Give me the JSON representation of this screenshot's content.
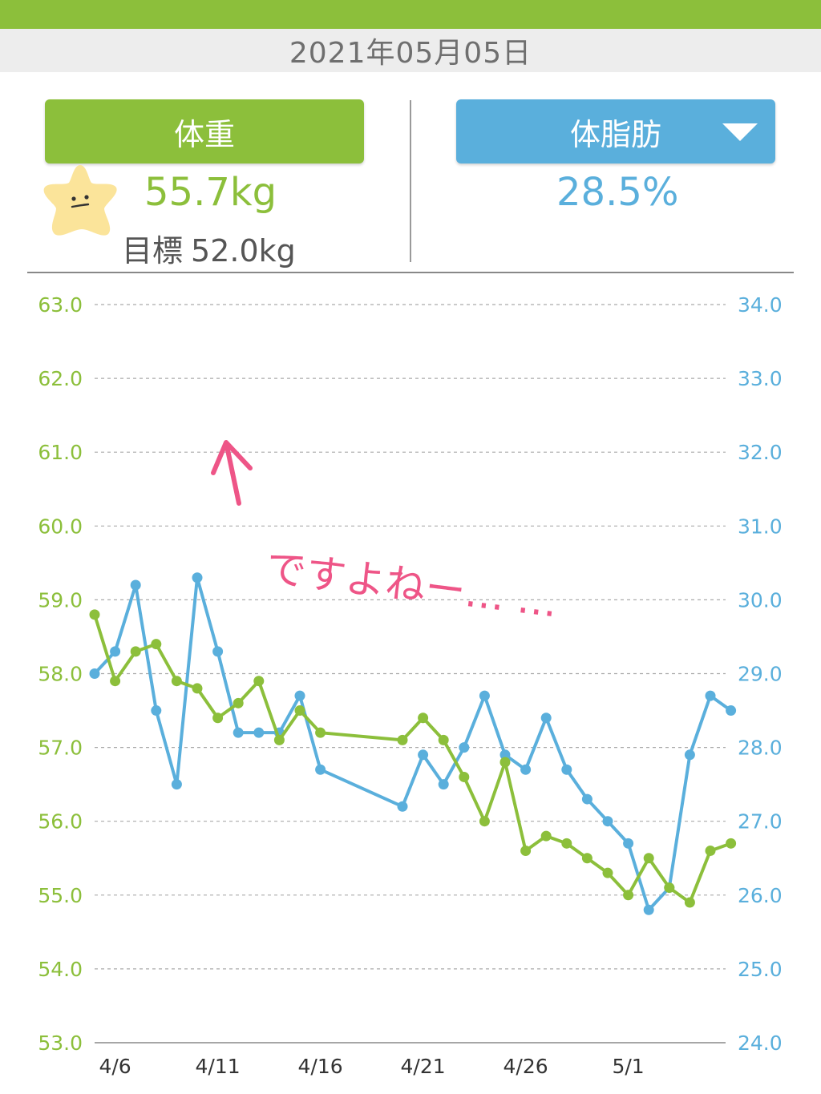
{
  "header": {
    "date": "2021年05月05日"
  },
  "tabs": {
    "weight_label": "体重",
    "fat_label": "体脂肪"
  },
  "summary": {
    "weight_value": "55.7kg",
    "target_label": "目標",
    "target_value": "52.0kg",
    "fat_value": "28.5%"
  },
  "annotation": {
    "text": "ですよねー… …",
    "icon": "arrow-up-icon"
  },
  "colors": {
    "weight": "#8cbf3b",
    "fat": "#5aafdc",
    "accent_top_bar": "#8cbf3b",
    "annotation": "#ee5587"
  },
  "chart_data": {
    "type": "line",
    "x_tick_labels": [
      "4/6",
      "4/11",
      "4/16",
      "4/21",
      "4/26",
      "5/1"
    ],
    "y_left_ticks": [
      "53.0",
      "54.0",
      "55.0",
      "56.0",
      "57.0",
      "58.0",
      "59.0",
      "60.0",
      "61.0",
      "62.0",
      "63.0"
    ],
    "y_right_ticks": [
      "24.0",
      "25.0",
      "26.0",
      "27.0",
      "28.0",
      "29.0",
      "30.0",
      "31.0",
      "32.0",
      "33.0",
      "34.0"
    ],
    "y_left_range": [
      53,
      63
    ],
    "y_right_range": [
      24,
      34
    ],
    "x_range": [
      "4/4",
      "5/4"
    ],
    "grid": true,
    "series": [
      {
        "axis": "left",
        "color": "#8cbf3b",
        "points": [
          [
            "4/5",
            58.8
          ],
          [
            "4/6",
            57.9
          ],
          [
            "4/7",
            58.3
          ],
          [
            "4/8",
            58.4
          ],
          [
            "4/9",
            57.9
          ],
          [
            "4/10",
            57.8
          ],
          [
            "4/11",
            57.4
          ],
          [
            "4/12",
            57.6
          ],
          [
            "4/13",
            57.9
          ],
          [
            "4/14",
            57.1
          ],
          [
            "4/15",
            57.5
          ],
          [
            "4/16",
            57.2
          ],
          [
            "4/20",
            57.1
          ],
          [
            "4/21",
            57.4
          ],
          [
            "4/22",
            57.1
          ],
          [
            "4/23",
            56.6
          ],
          [
            "4/24",
            56.0
          ],
          [
            "4/25",
            56.8
          ],
          [
            "4/26",
            55.6
          ],
          [
            "4/27",
            55.8
          ],
          [
            "4/28",
            55.7
          ],
          [
            "4/29",
            55.5
          ],
          [
            "4/30",
            55.3
          ],
          [
            "5/1",
            55.0
          ],
          [
            "5/2",
            55.5
          ],
          [
            "5/3",
            55.1
          ],
          [
            "5/4",
            54.9
          ],
          [
            "5/5",
            55.6
          ],
          [
            "5/6",
            55.7
          ]
        ]
      },
      {
        "axis": "right",
        "color": "#5aafdc",
        "points": [
          [
            "4/5",
            29.0
          ],
          [
            "4/6",
            29.3
          ],
          [
            "4/7",
            30.2
          ],
          [
            "4/8",
            28.5
          ],
          [
            "4/9",
            27.5
          ],
          [
            "4/10",
            30.3
          ],
          [
            "4/11",
            29.3
          ],
          [
            "4/12",
            28.2
          ],
          [
            "4/13",
            28.2
          ],
          [
            "4/14",
            28.2
          ],
          [
            "4/15",
            28.7
          ],
          [
            "4/16",
            27.7
          ],
          [
            "4/20",
            27.2
          ],
          [
            "4/21",
            27.9
          ],
          [
            "4/22",
            27.5
          ],
          [
            "4/23",
            28.0
          ],
          [
            "4/24",
            28.7
          ],
          [
            "4/25",
            27.9
          ],
          [
            "4/26",
            27.7
          ],
          [
            "4/27",
            28.4
          ],
          [
            "4/28",
            27.7
          ],
          [
            "4/29",
            27.3
          ],
          [
            "4/30",
            27.0
          ],
          [
            "5/1",
            26.7
          ],
          [
            "5/2",
            25.8
          ],
          [
            "5/3",
            26.1
          ],
          [
            "5/4",
            27.9
          ],
          [
            "5/5",
            28.7
          ],
          [
            "5/6",
            28.5
          ]
        ]
      }
    ]
  }
}
